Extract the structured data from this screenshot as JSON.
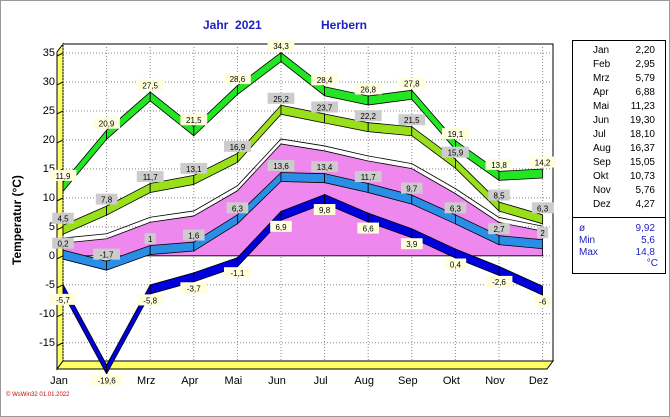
{
  "title": {
    "year": "Jahr  2021",
    "station": "Herbern"
  },
  "chart_data": {
    "type": "line",
    "ylabel": "Temperatur  (°C)",
    "ylim": [
      -19,
      37
    ],
    "yticks": [
      35,
      30,
      25,
      20,
      15,
      10,
      5,
      0,
      -5,
      -10,
      -15
    ],
    "categories": [
      "Jan",
      "Feb",
      "Mrz",
      "Apr",
      "Mai",
      "Jun",
      "Jul",
      "Aug",
      "Sep",
      "Okt",
      "Nov",
      "Dez"
    ],
    "grid": true,
    "series": [
      {
        "role": "abs_max",
        "color": "#22e622",
        "values": [
          11.9,
          20.9,
          27.5,
          21.5,
          28.6,
          34.3,
          28.4,
          26.8,
          27.8,
          19.1,
          13.8,
          14.2
        ]
      },
      {
        "role": "mean_max",
        "color": "#99e01a",
        "values": [
          4.5,
          7.8,
          11.7,
          13.1,
          16.9,
          25.2,
          23.7,
          22.2,
          21.5,
          15.9,
          8.5,
          6.3
        ]
      },
      {
        "role": "mean",
        "color": "#2a8ee6",
        "values": [
          0.2,
          -1.7,
          1.0,
          1.6,
          6.3,
          13.6,
          13.4,
          11.7,
          9.7,
          6.3,
          2.7,
          2.0
        ]
      },
      {
        "role": "mean_min",
        "color": "#0000dd",
        "values": [
          -5.7,
          -19.6,
          -5.8,
          -3.7,
          -1.1,
          6.9,
          9.8,
          6.6,
          3.9,
          0.4,
          -2.6,
          -6.0
        ]
      },
      {
        "role": "monthly_avg_band",
        "color": "#ee88ee",
        "values": [
          2.2,
          2.95,
          5.79,
          6.88,
          11.23,
          19.3,
          18.1,
          16.37,
          15.05,
          10.73,
          5.76,
          4.27
        ]
      }
    ]
  },
  "monthly_means": [
    {
      "month": "Jan",
      "value": "2,20"
    },
    {
      "month": "Feb",
      "value": "2,95"
    },
    {
      "month": "Mrz",
      "value": "5,79"
    },
    {
      "month": "Apr",
      "value": "6,88"
    },
    {
      "month": "Mai",
      "value": "11,23"
    },
    {
      "month": "Jun",
      "value": "19,30"
    },
    {
      "month": "Jul",
      "value": "18,10"
    },
    {
      "month": "Aug",
      "value": "16,37"
    },
    {
      "month": "Sep",
      "value": "15,05"
    },
    {
      "month": "Okt",
      "value": "10,73"
    },
    {
      "month": "Nov",
      "value": "5,76"
    },
    {
      "month": "Dez",
      "value": "4,27"
    }
  ],
  "summary": [
    {
      "label": "ø",
      "value": "9,92"
    },
    {
      "label": "Min",
      "value": "5,6"
    },
    {
      "label": "Max",
      "value": "14,8"
    }
  ],
  "unit": "°C",
  "credit": "© WsWin32  01.01.2022"
}
